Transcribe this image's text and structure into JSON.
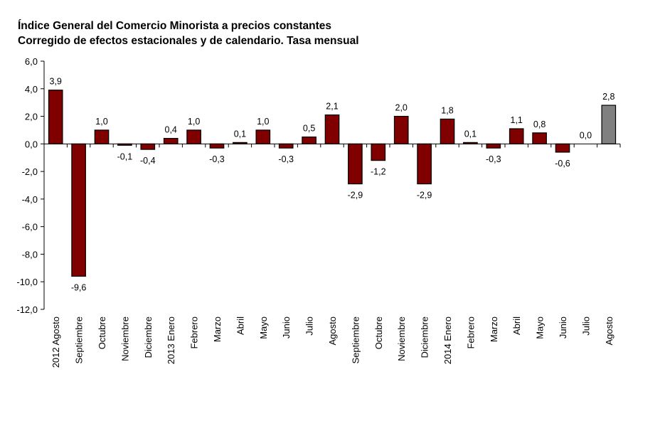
{
  "chart_data": {
    "type": "bar",
    "title": "Índice General del Comercio Minorista a precios constantes",
    "subtitle": "Corregido de efectos estacionales y de calendario. Tasa mensual",
    "xlabel": "",
    "ylabel": "",
    "ylim": [
      -12,
      6
    ],
    "yticks": [
      6,
      4,
      2,
      0,
      -2,
      -4,
      -6,
      -8,
      -10,
      -12
    ],
    "ytick_labels": [
      "6,0",
      "4,0",
      "2,0",
      "0,0",
      "-2,0",
      "-4,0",
      "-6,0",
      "-8,0",
      "-10,0",
      "-12,0"
    ],
    "grid": false,
    "legend": "none",
    "categories": [
      "2012 Agosto",
      "Septiembre",
      "Octubre",
      "Noviembre",
      "Diciembre",
      "2013 Enero",
      "Febrero",
      "Marzo",
      "Abril",
      "Mayo",
      "Junio",
      "Julio",
      "Agosto",
      "Septiembre",
      "Octubre",
      "Noviembre",
      "Diciembre",
      "2014 Enero",
      "Febrero",
      "Marzo",
      "Abril",
      "Mayo",
      "Junio",
      "Julio",
      "Agosto"
    ],
    "values": [
      3.9,
      -9.6,
      1.0,
      -0.1,
      -0.4,
      0.4,
      1.0,
      -0.3,
      0.1,
      1.0,
      -0.3,
      0.5,
      2.1,
      -2.9,
      -1.2,
      2.0,
      -2.9,
      1.8,
      0.1,
      -0.3,
      1.1,
      0.8,
      -0.6,
      0.0,
      2.8
    ],
    "value_labels": [
      "3,9",
      "-9,6",
      "1,0",
      "-0,1",
      "-0,4",
      "0,4",
      "1,0",
      "-0,3",
      "0,1",
      "1,0",
      "-0,3",
      "0,5",
      "2,1",
      "-2,9",
      "-1,2",
      "2,0",
      "-2,9",
      "1,8",
      "0,1",
      "-0,3",
      "1,1",
      "0,8",
      "-0,6",
      "0,0",
      "2,8"
    ],
    "colors": {
      "default_bar": "#800000",
      "highlight_bar": "#808080",
      "bar_stroke": "#000000",
      "axis": "#000000"
    },
    "highlight_index": 24
  }
}
